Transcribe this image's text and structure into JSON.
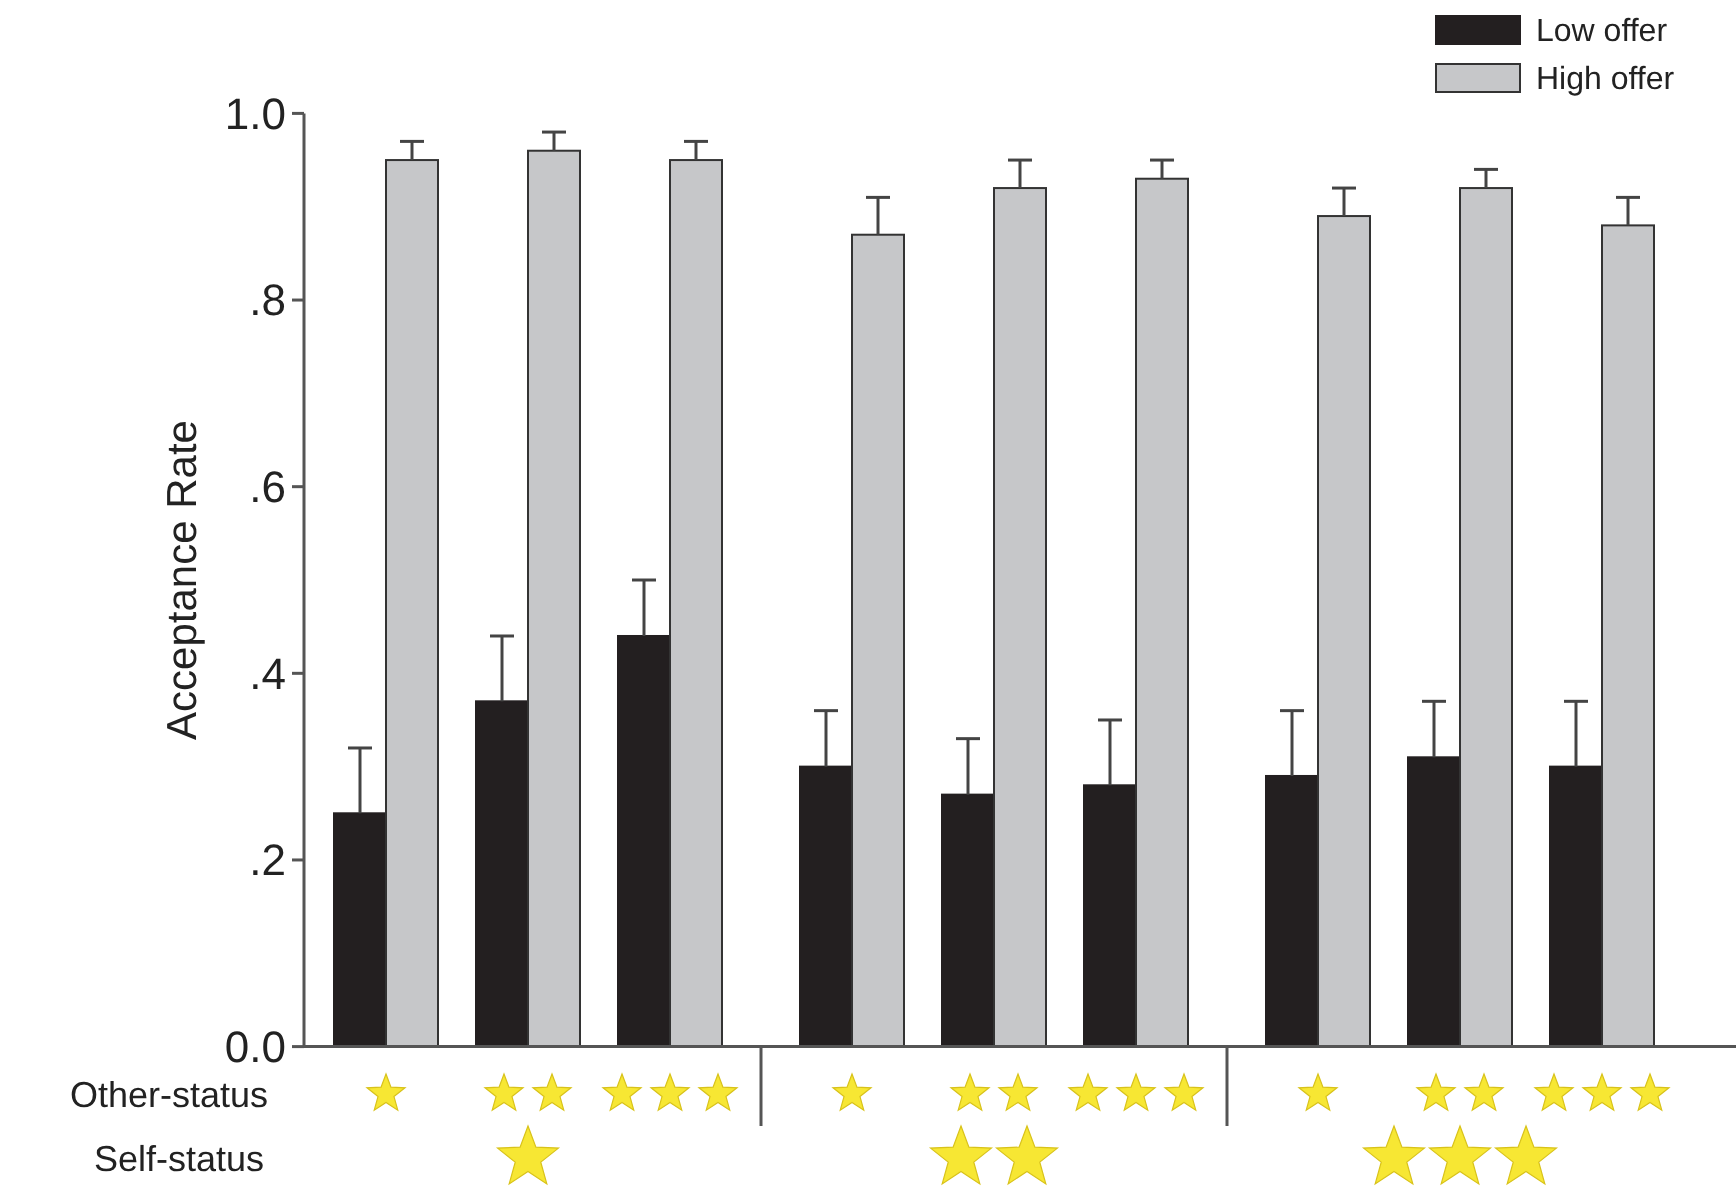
{
  "chart_data": {
    "type": "bar",
    "ylabel": "Acceptance Rate",
    "categories": [
      null,
      null,
      null,
      null,
      null,
      null,
      null,
      null,
      null
    ],
    "series": [
      {
        "name": "Low offer",
        "color": "#231f20",
        "values": [
          0.25,
          0.37,
          0.44,
          0.3,
          0.27,
          0.28,
          0.29,
          0.31,
          0.3
        ],
        "errors": [
          [
            0.25,
            0.32
          ],
          [
            0.37,
            0.44
          ],
          [
            0.44,
            0.5
          ],
          [
            0.3,
            0.36
          ],
          [
            0.27,
            0.33
          ],
          [
            0.28,
            0.35
          ],
          [
            0.29,
            0.36
          ],
          [
            0.31,
            0.37
          ],
          [
            0.3,
            0.37
          ]
        ]
      },
      {
        "name": "High offer",
        "color": "#c6c7c9",
        "values": [
          0.95,
          0.96,
          0.95,
          0.87,
          0.92,
          0.93,
          0.89,
          0.92,
          0.88
        ],
        "errors": [
          [
            0.95,
            0.97
          ],
          [
            0.96,
            0.98
          ],
          [
            0.95,
            0.97
          ],
          [
            0.87,
            0.91
          ],
          [
            0.92,
            0.95
          ],
          [
            0.93,
            0.95
          ],
          [
            0.89,
            0.92
          ],
          [
            0.92,
            0.94
          ],
          [
            0.88,
            0.91
          ]
        ]
      }
    ],
    "ylim": [
      0,
      1
    ],
    "yticks": [
      {
        "value": 0,
        "label": "0.0"
      },
      {
        "value": 0.2,
        "label": ".2"
      },
      {
        "value": 0.4,
        "label": ".4"
      },
      {
        "value": 0.6,
        "label": ".6"
      },
      {
        "value": 0.8,
        "label": ".8"
      },
      {
        "value": 1,
        "label": "1.0"
      }
    ],
    "legend": "top right",
    "annotations": [
      "Other-status",
      "Self-status"
    ]
  }
}
